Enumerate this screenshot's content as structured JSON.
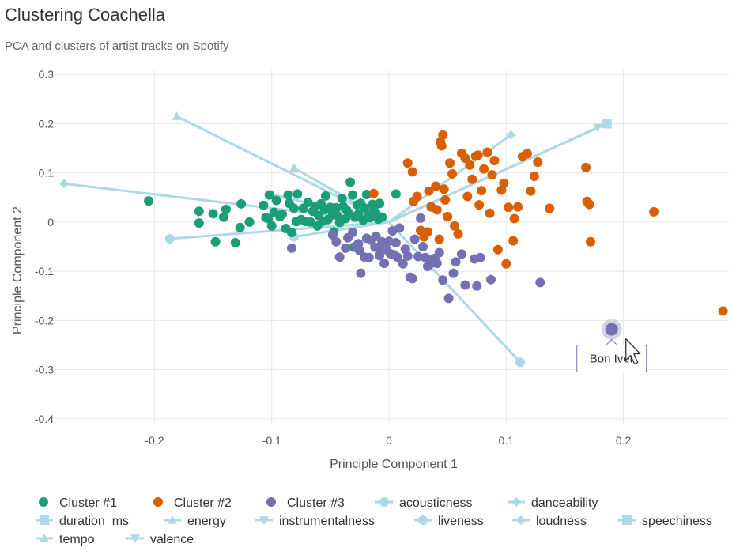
{
  "header": {
    "title": "Clustering Coachella",
    "subtitle": "PCA and clusters of artist tracks on Spotify"
  },
  "colors": {
    "cluster1": "#1b9e77",
    "cluster2": "#d95f02",
    "cluster3": "#7570b3",
    "loading": "#add8e6",
    "grid": "#e8e8e8"
  },
  "chart_data": {
    "type": "scatter",
    "xlabel": "Principle Component 1",
    "ylabel": "Principle Component 2",
    "xlim": [
      -0.29,
      0.29
    ],
    "ylim": [
      -0.41,
      0.31
    ],
    "xticks": [
      -0.2,
      -0.1,
      0,
      0.1,
      0.2
    ],
    "xtick_labels": [
      "-0.2",
      "-0.1",
      "0",
      "0.1",
      "0.2"
    ],
    "yticks": [
      -0.4,
      -0.3,
      -0.2,
      -0.1,
      0,
      0.1,
      0.2,
      0.3
    ],
    "ytick_labels": [
      "-0.4",
      "-0.3",
      "-0.2",
      "-0.1",
      "0",
      "0.1",
      "0.2",
      "0.3"
    ],
    "grid": true,
    "legend_position": "bottom",
    "series": [
      {
        "name": "Cluster #1",
        "color": "#1b9e77",
        "marker": "circle",
        "points": [
          [
            -0.205,
            0.043
          ],
          [
            -0.162,
            0.022
          ],
          [
            -0.162,
            -0.002
          ],
          [
            -0.15,
            0.017
          ],
          [
            -0.148,
            -0.04
          ],
          [
            -0.141,
            0.01
          ],
          [
            -0.139,
            0.026
          ],
          [
            -0.131,
            -0.042
          ],
          [
            -0.127,
            -0.011
          ],
          [
            -0.126,
            0.037
          ],
          [
            -0.119,
            0.0
          ],
          [
            -0.107,
            0.034
          ],
          [
            -0.105,
            0.009
          ],
          [
            -0.103,
            0.007
          ],
          [
            -0.102,
            0.055
          ],
          [
            -0.1,
            -0.008
          ],
          [
            -0.098,
            0.02
          ],
          [
            -0.096,
            0.044
          ],
          [
            -0.093,
            0.011
          ],
          [
            -0.091,
            0.016
          ],
          [
            -0.088,
            -0.013
          ],
          [
            -0.086,
            0.055
          ],
          [
            -0.085,
            0.038
          ],
          [
            -0.083,
            -0.021
          ],
          [
            -0.081,
            0.028
          ],
          [
            -0.079,
            0.001
          ],
          [
            -0.078,
            0.057
          ],
          [
            -0.075,
            0.005
          ],
          [
            -0.073,
            0.028
          ],
          [
            -0.071,
            0.001
          ],
          [
            -0.069,
            0.04
          ],
          [
            -0.067,
            0.0
          ],
          [
            -0.065,
            0.022
          ],
          [
            -0.063,
            0.031
          ],
          [
            -0.061,
            -0.008
          ],
          [
            -0.06,
            0.013
          ],
          [
            -0.058,
            0.037
          ],
          [
            -0.056,
            0.002
          ],
          [
            -0.055,
            0.025
          ],
          [
            -0.054,
            0.053
          ],
          [
            -0.052,
            0.005
          ],
          [
            -0.05,
            0.03
          ],
          [
            -0.048,
            0.015
          ],
          [
            -0.047,
            -0.02
          ],
          [
            -0.045,
            0.029
          ],
          [
            -0.044,
            0.013
          ],
          [
            -0.042,
            -0.001
          ],
          [
            -0.04,
            0.048
          ],
          [
            -0.039,
            0.032
          ],
          [
            -0.037,
            0.007
          ],
          [
            -0.036,
            0.024
          ],
          [
            -0.034,
            0.018
          ],
          [
            -0.033,
            0.081
          ],
          [
            -0.031,
            0.055
          ],
          [
            -0.03,
            -0.051
          ],
          [
            -0.029,
            0.01
          ],
          [
            -0.027,
            0.035
          ],
          [
            -0.026,
            0.016
          ],
          [
            -0.024,
            0.038
          ],
          [
            -0.022,
            0.004
          ],
          [
            -0.021,
            0.029
          ],
          [
            -0.019,
            0.056
          ],
          [
            -0.017,
            0.014
          ],
          [
            -0.016,
            0.009
          ],
          [
            -0.014,
            0.036
          ],
          [
            -0.013,
            0.028
          ],
          [
            -0.011,
            0.018
          ],
          [
            -0.009,
            0.006
          ],
          [
            -0.008,
            0.038
          ],
          [
            -0.006,
            0.01
          ],
          [
            0.006,
            0.057
          ]
        ]
      },
      {
        "name": "Cluster #2",
        "color": "#d95f02",
        "marker": "circle",
        "points": [
          [
            -0.013,
            0.058
          ],
          [
            0.016,
            0.12
          ],
          [
            0.02,
            0.102
          ],
          [
            0.021,
            0.042
          ],
          [
            0.024,
            0.052
          ],
          [
            0.027,
            -0.017
          ],
          [
            0.03,
            -0.03
          ],
          [
            0.033,
            -0.02
          ],
          [
            0.034,
            0.063
          ],
          [
            0.036,
            0.031
          ],
          [
            0.04,
            0.073
          ],
          [
            0.041,
            0.025
          ],
          [
            0.043,
            -0.035
          ],
          [
            0.044,
            0.163
          ],
          [
            0.045,
            0.155
          ],
          [
            0.046,
            0.177
          ],
          [
            0.047,
            0.067
          ],
          [
            0.048,
            0.045
          ],
          [
            0.05,
            0.011
          ],
          [
            0.052,
            0.12
          ],
          [
            0.054,
            0.098
          ],
          [
            0.056,
            -0.008
          ],
          [
            0.059,
            -0.024
          ],
          [
            0.062,
            0.14
          ],
          [
            0.065,
            0.13
          ],
          [
            0.067,
            0.052
          ],
          [
            0.069,
            0.116
          ],
          [
            0.071,
            0.087
          ],
          [
            0.074,
            0.134
          ],
          [
            0.076,
            0.136
          ],
          [
            0.077,
            0.035
          ],
          [
            0.079,
            0.064
          ],
          [
            0.081,
            0.108
          ],
          [
            0.084,
            0.142
          ],
          [
            0.086,
            0.018
          ],
          [
            0.088,
            0.096
          ],
          [
            0.09,
            0.125
          ],
          [
            0.093,
            -0.056
          ],
          [
            0.096,
            0.065
          ],
          [
            0.098,
            0.079
          ],
          [
            0.1,
            -0.085
          ],
          [
            0.102,
            0.03
          ],
          [
            0.106,
            -0.038
          ],
          [
            0.107,
            0.007
          ],
          [
            0.11,
            0.031
          ],
          [
            0.114,
            0.133
          ],
          [
            0.118,
            0.139
          ],
          [
            0.121,
            0.063
          ],
          [
            0.124,
            0.093
          ],
          [
            0.127,
            0.122
          ],
          [
            0.137,
            0.028
          ],
          [
            0.168,
            0.111
          ],
          [
            0.169,
            0.042
          ],
          [
            0.171,
            0.036
          ],
          [
            0.172,
            -0.04
          ],
          [
            0.226,
            0.021
          ],
          [
            0.285,
            -0.181
          ]
        ]
      },
      {
        "name": "Cluster #3",
        "color": "#7570b3",
        "marker": "circle",
        "points": [
          [
            -0.083,
            -0.053
          ],
          [
            -0.048,
            -0.026
          ],
          [
            -0.045,
            -0.04
          ],
          [
            -0.042,
            -0.071
          ],
          [
            -0.037,
            -0.053
          ],
          [
            -0.035,
            -0.032
          ],
          [
            -0.031,
            -0.021
          ],
          [
            -0.028,
            -0.049
          ],
          [
            -0.026,
            -0.044
          ],
          [
            -0.025,
            -0.058
          ],
          [
            -0.024,
            -0.104
          ],
          [
            -0.021,
            -0.071
          ],
          [
            -0.019,
            -0.033
          ],
          [
            -0.017,
            -0.072
          ],
          [
            -0.015,
            -0.037
          ],
          [
            -0.012,
            -0.051
          ],
          [
            -0.011,
            -0.029
          ],
          [
            -0.009,
            -0.052
          ],
          [
            -0.008,
            -0.068
          ],
          [
            -0.006,
            -0.04
          ],
          [
            -0.004,
            -0.084
          ],
          [
            -0.002,
            -0.056
          ],
          [
            0.0,
            -0.039
          ],
          [
            0.001,
            -0.064
          ],
          [
            0.003,
            -0.018
          ],
          [
            0.004,
            -0.066
          ],
          [
            0.006,
            -0.042
          ],
          [
            0.007,
            -0.071
          ],
          [
            0.009,
            -0.012
          ],
          [
            0.012,
            -0.085
          ],
          [
            0.014,
            -0.055
          ],
          [
            0.016,
            -0.069
          ],
          [
            0.018,
            -0.112
          ],
          [
            0.02,
            -0.115
          ],
          [
            0.022,
            -0.035
          ],
          [
            0.025,
            -0.07
          ],
          [
            0.027,
            0.008
          ],
          [
            0.029,
            -0.05
          ],
          [
            0.031,
            -0.072
          ],
          [
            0.033,
            -0.09
          ],
          [
            0.035,
            -0.077
          ],
          [
            0.037,
            -0.083
          ],
          [
            0.039,
            -0.074
          ],
          [
            0.041,
            -0.084
          ],
          [
            0.043,
            -0.062
          ],
          [
            0.046,
            -0.118
          ],
          [
            0.051,
            -0.155
          ],
          [
            0.055,
            -0.104
          ],
          [
            0.057,
            -0.081
          ],
          [
            0.062,
            -0.065
          ],
          [
            0.065,
            -0.128
          ],
          [
            0.073,
            -0.075
          ],
          [
            0.075,
            -0.13
          ],
          [
            0.078,
            -0.072
          ],
          [
            0.087,
            -0.117
          ],
          [
            0.129,
            -0.123
          ]
        ]
      }
    ],
    "loadings": [
      {
        "name": "acousticness",
        "marker": "circle",
        "points": [
          [
            0.0,
            0.0
          ],
          [
            0.112,
            -0.285
          ]
        ],
        "end2": [
          -0.187,
          -0.034
        ]
      },
      {
        "name": "danceability",
        "marker": "diamond",
        "points": [
          [
            0.0,
            0.0
          ],
          [
            0.104,
            0.177
          ]
        ],
        "end2": [
          -0.277,
          0.078
        ]
      },
      {
        "name": "duration_ms",
        "marker": "square",
        "points": [
          [
            0.0,
            0.0
          ],
          [
            0.186,
            0.2
          ]
        ]
      },
      {
        "name": "energy",
        "marker": "triangle-up",
        "points": [
          [
            0.0,
            0.0
          ],
          [
            -0.181,
            0.215
          ]
        ],
        "end2": [
          -0.081,
          0.11
        ]
      },
      {
        "name": "instrumentalness",
        "marker": "triangle-down",
        "points": [
          [
            0.0,
            0.0
          ],
          [
            -0.101,
            0.057
          ]
        ],
        "end2": [
          0.178,
          0.192
        ]
      },
      {
        "name": "liveness",
        "marker": "circle",
        "points": [
          [
            0.0,
            0.0
          ],
          [
            -0.081,
            -0.03
          ]
        ]
      },
      {
        "name": "loudness",
        "marker": "diamond",
        "points": [
          [
            0.0,
            0.0
          ],
          [
            0.104,
            0.177
          ]
        ]
      },
      {
        "name": "speechiness",
        "marker": "square",
        "points": [
          [
            0.0,
            0.0
          ],
          [
            0.186,
            0.2
          ]
        ]
      },
      {
        "name": "tempo",
        "marker": "triangle-up",
        "points": [
          [
            0.0,
            0.0
          ],
          [
            -0.081,
            0.11
          ]
        ]
      },
      {
        "name": "valence",
        "marker": "triangle-down",
        "points": [
          [
            0.0,
            0.0
          ],
          [
            0.178,
            0.192
          ]
        ]
      }
    ],
    "highlight": {
      "label": "Bon Iver",
      "x": 0.19,
      "y": -0.218
    }
  },
  "legend": {
    "items": [
      {
        "label": "Cluster #1",
        "marker": "circle",
        "color": "#1b9e77"
      },
      {
        "label": "Cluster #2",
        "marker": "circle",
        "color": "#d95f02"
      },
      {
        "label": "Cluster #3",
        "marker": "circle",
        "color": "#7570b3"
      },
      {
        "label": "acousticness",
        "marker": "line-circle",
        "color": "#add8e6"
      },
      {
        "label": "danceability",
        "marker": "line-diamond",
        "color": "#add8e6"
      },
      {
        "label": "duration_ms",
        "marker": "line-square",
        "color": "#add8e6"
      },
      {
        "label": "energy",
        "marker": "line-triangle-up",
        "color": "#add8e6"
      },
      {
        "label": "instrumentalness",
        "marker": "line-triangle-down",
        "color": "#add8e6"
      },
      {
        "label": "liveness",
        "marker": "line-circle",
        "color": "#add8e6"
      },
      {
        "label": "loudness",
        "marker": "line-diamond",
        "color": "#add8e6"
      },
      {
        "label": "speechiness",
        "marker": "line-square",
        "color": "#add8e6"
      },
      {
        "label": "tempo",
        "marker": "line-triangle-up",
        "color": "#add8e6"
      },
      {
        "label": "valence",
        "marker": "line-triangle-down",
        "color": "#add8e6"
      }
    ]
  },
  "tooltip": {
    "label": "Bon Iver",
    "cursor_icon": "mouse-pointer-icon"
  }
}
